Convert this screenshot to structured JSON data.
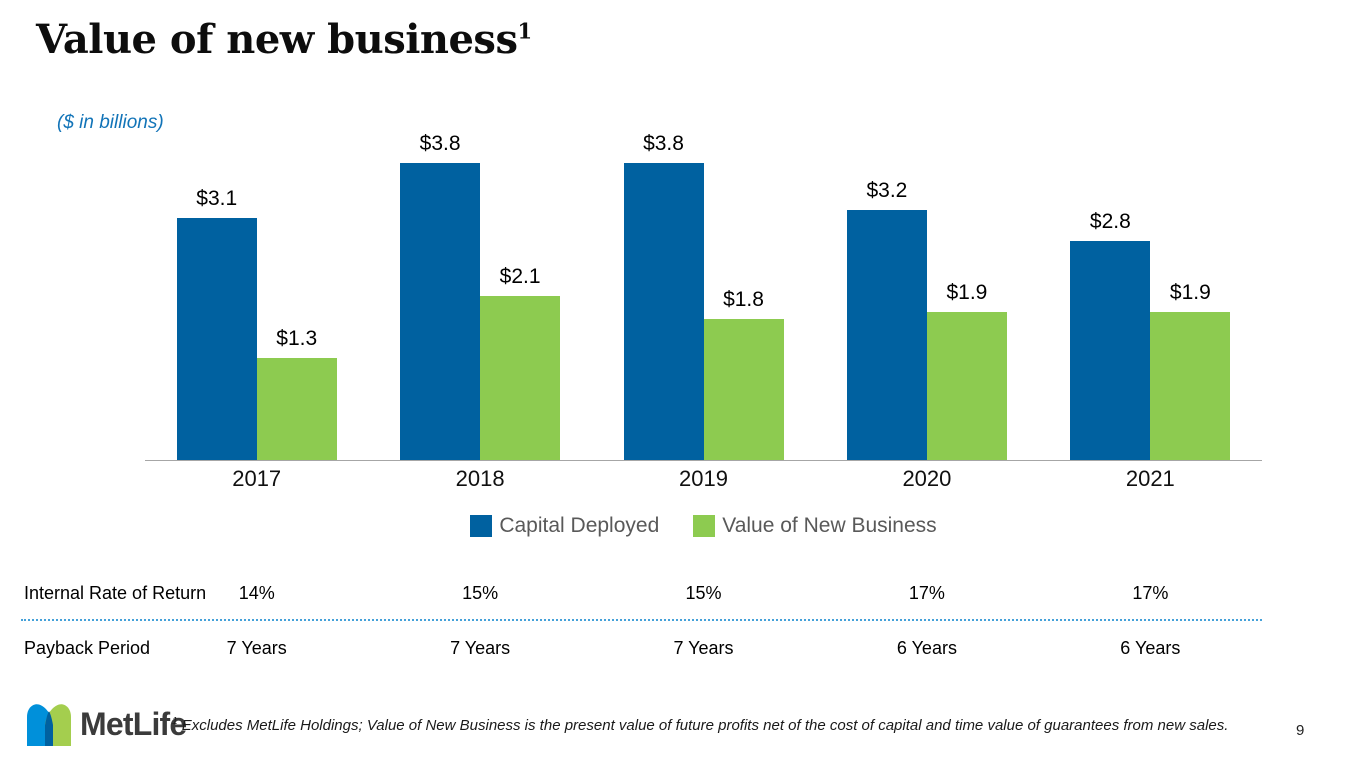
{
  "slide": {
    "title": "Value of new business",
    "title_superscript": "1",
    "units_note": "($ in billions)",
    "logo_text": "MetLife",
    "footnote_superscript": "1",
    "footnote": "Excludes MetLife Holdings; Value of New Business is the present value of future profits net of the cost of capital and time value of guarantees from new sales.",
    "page_number": "9"
  },
  "chart_data": {
    "type": "bar",
    "title": "Value of new business ($ in billions)",
    "categories": [
      "2017",
      "2018",
      "2019",
      "2020",
      "2021"
    ],
    "series": [
      {
        "name": "Capital Deployed",
        "color": "#0061A0",
        "values": [
          3.1,
          3.8,
          3.8,
          3.2,
          2.8
        ],
        "labels": [
          "$3.1",
          "$3.8",
          "$3.8",
          "$3.2",
          "$2.8"
        ]
      },
      {
        "name": "Value of New Business",
        "color": "#8DCB50",
        "values": [
          1.3,
          2.1,
          1.8,
          1.9,
          1.9
        ],
        "labels": [
          "$1.3",
          "$2.1",
          "$1.8",
          "$1.9",
          "$1.9"
        ]
      }
    ],
    "xlabel": "",
    "ylabel": "",
    "ylim": [
      0,
      3.8
    ],
    "grid": false,
    "legend_position": "bottom",
    "axis_line_color": "#a6a6a6"
  },
  "table": {
    "rows": [
      {
        "label": "Internal Rate of Return",
        "values": [
          "14%",
          "15%",
          "15%",
          "17%",
          "17%"
        ]
      },
      {
        "label": "Payback Period",
        "values": [
          "7 Years",
          "7 Years",
          "7 Years",
          "6 Years",
          "6 Years"
        ]
      }
    ]
  },
  "logo_colors": {
    "left": "#0090DA",
    "right": "#A4CE4E",
    "overlap": "#0061A0",
    "wordmark": "#3b3b3b"
  }
}
